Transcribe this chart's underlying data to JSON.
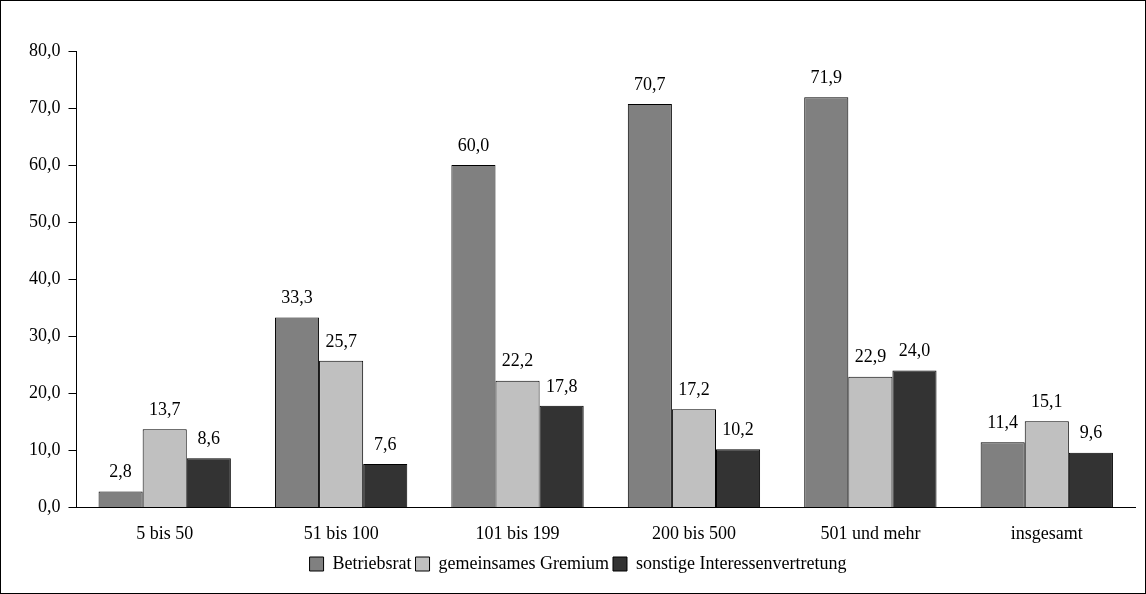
{
  "chart_data": {
    "type": "bar",
    "categories": [
      "5 bis 50",
      "51 bis 100",
      "101 bis 199",
      "200 bis 500",
      "501 und mehr",
      "insgesamt"
    ],
    "series": [
      {
        "name": "Betriebsrat",
        "color": "#808080",
        "values": [
          2.8,
          33.3,
          60.0,
          70.7,
          71.9,
          11.4
        ],
        "value_labels": [
          "2,8",
          "33,3",
          "60,0",
          "70,7",
          "71,9",
          "11,4"
        ]
      },
      {
        "name": "gemeinsames Gremium",
        "color": "#c0c0c0",
        "values": [
          13.7,
          25.7,
          22.2,
          17.2,
          22.9,
          15.1
        ],
        "value_labels": [
          "13,7",
          "25,7",
          "22,2",
          "17,2",
          "22,9",
          "15,1"
        ]
      },
      {
        "name": "sonstige Interessenvertretung",
        "color": "#333333",
        "values": [
          8.6,
          7.6,
          17.8,
          10.2,
          24.0,
          9.6
        ],
        "value_labels": [
          "8,6",
          "7,6",
          "17,8",
          "10,2",
          "24,0",
          "9,6"
        ]
      }
    ],
    "ylim": [
      0,
      80
    ],
    "yticks": [
      {
        "value": 0,
        "label": "0,0"
      },
      {
        "value": 10,
        "label": "10,0"
      },
      {
        "value": 20,
        "label": "20,0"
      },
      {
        "value": 30,
        "label": "30,0"
      },
      {
        "value": 40,
        "label": "40,0"
      },
      {
        "value": 50,
        "label": "50,0"
      },
      {
        "value": 60,
        "label": "60,0"
      },
      {
        "value": 70,
        "label": "70,0"
      },
      {
        "value": 80,
        "label": "80,0"
      }
    ],
    "grid": false,
    "legend": "bottom"
  }
}
